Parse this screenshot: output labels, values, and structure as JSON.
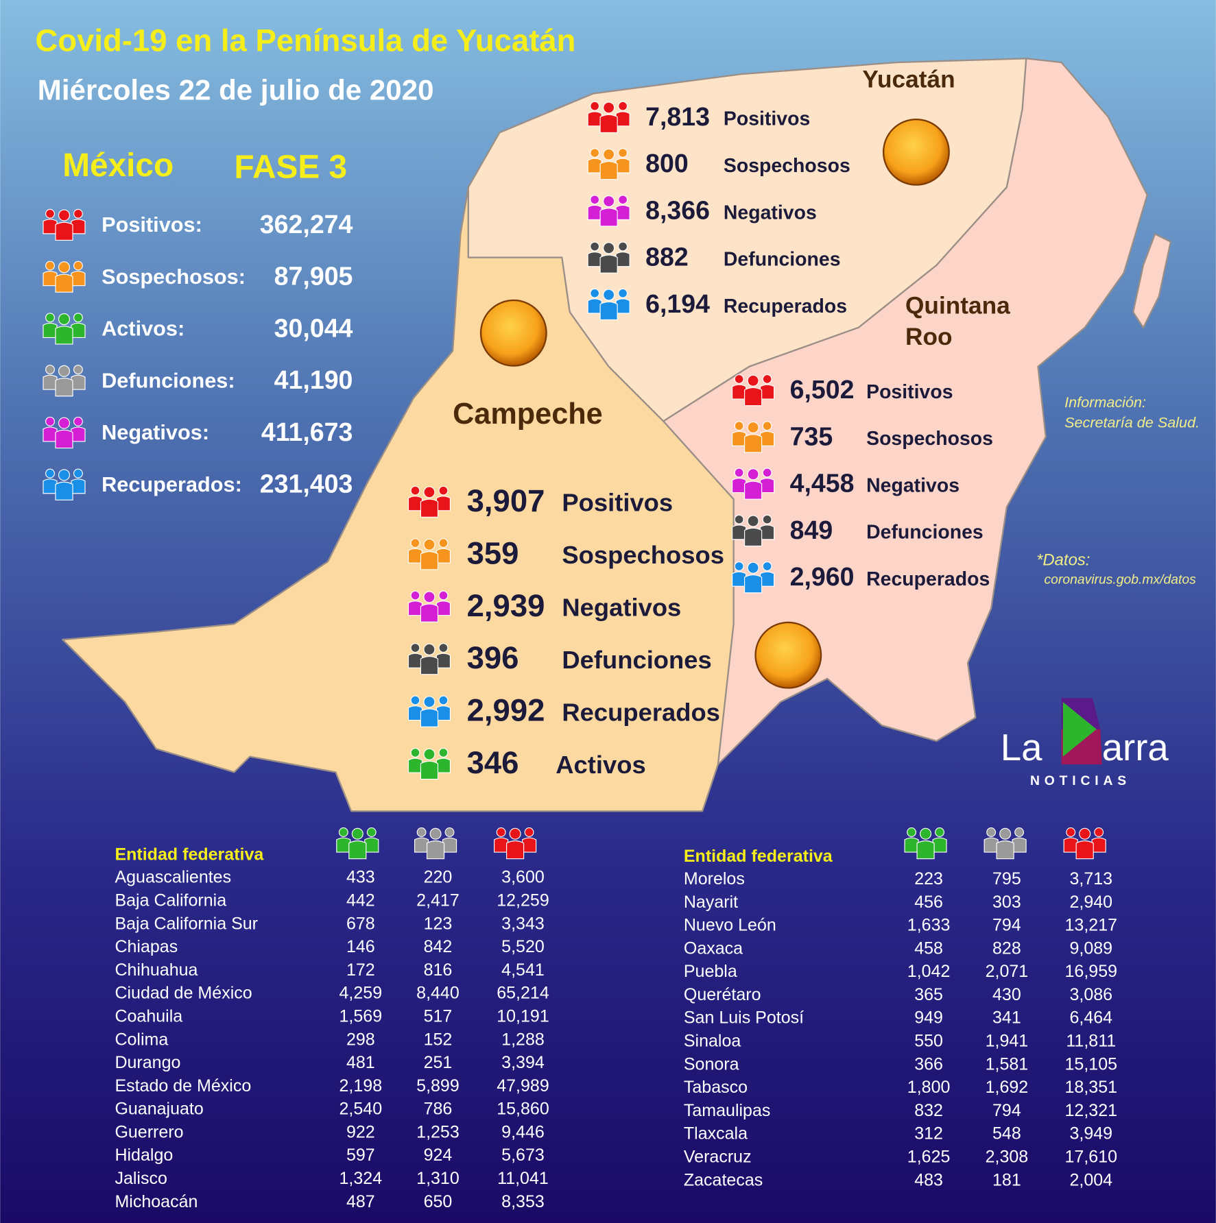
{
  "header": {
    "title": "Covid-19 en la Península de Yucatán",
    "date": "Miércoles 22 de julio de 2020"
  },
  "mexico": {
    "label": "México",
    "phase": "FASE 3",
    "stats": [
      {
        "label": "Positivos:",
        "value": "362,274"
      },
      {
        "label": "Sospechosos:",
        "value": "87,905"
      },
      {
        "label": "Activos:",
        "value": "30,044"
      },
      {
        "label": "Defunciones:",
        "value": "41,190"
      },
      {
        "label": "Negativos:",
        "value": "411,673"
      },
      {
        "label": "Recuperados:",
        "value": "231,403"
      }
    ]
  },
  "yucatan": {
    "name": "Yucatán",
    "stats": [
      {
        "value": "7,813",
        "label": "Positivos"
      },
      {
        "value": "800",
        "label": "Sospechosos"
      },
      {
        "value": "8,366",
        "label": "Negativos"
      },
      {
        "value": "882",
        "label": "Defunciones"
      },
      {
        "value": "6,194",
        "label": "Recuperados"
      }
    ]
  },
  "quintana_roo": {
    "name_lines": [
      "Quintana",
      "Roo"
    ],
    "stats": [
      {
        "value": "6,502",
        "label": "Positivos"
      },
      {
        "value": "735",
        "label": "Sospechosos"
      },
      {
        "value": "4,458",
        "label": "Negativos"
      },
      {
        "value": "849",
        "label": "Defunciones"
      },
      {
        "value": "2,960",
        "label": "Recuperados"
      }
    ]
  },
  "campeche": {
    "name": "Campeche",
    "stats": [
      {
        "value": "3,907",
        "label": "Positivos"
      },
      {
        "value": "359",
        "label": "Sospechosos"
      },
      {
        "value": "2,939",
        "label": "Negativos"
      },
      {
        "value": "396",
        "label": "Defunciones"
      },
      {
        "value": "2,992",
        "label": "Recuperados"
      },
      {
        "value": "346",
        "label": "Activos"
      }
    ]
  },
  "sources": {
    "info_label": "Información:",
    "info_source": "Secretaría de Salud.",
    "data_label": "*Datos:",
    "data_source": "coronavirus.gob.mx/datos"
  },
  "logo": {
    "left": "La",
    "right": "arra",
    "subtitle": "NOTICIAS"
  },
  "tables": [
    {
      "header": "Entidad federativa",
      "rows": [
        [
          "Aguascalientes",
          "433",
          "220",
          "3,600"
        ],
        [
          "Baja California",
          "442",
          "2,417",
          "12,259"
        ],
        [
          "Baja California Sur",
          "678",
          "123",
          "3,343"
        ],
        [
          "Chiapas",
          "146",
          "842",
          "5,520"
        ],
        [
          "Chihuahua",
          "172",
          "816",
          "4,541"
        ],
        [
          "Ciudad de México",
          "4,259",
          "8,440",
          "65,214"
        ],
        [
          "Coahuila",
          "1,569",
          "517",
          "10,191"
        ],
        [
          "Colima",
          "298",
          "152",
          "1,288"
        ],
        [
          "Durango",
          "481",
          "251",
          "3,394"
        ],
        [
          "Estado de México",
          "2,198",
          "5,899",
          "47,989"
        ],
        [
          "Guanajuato",
          "2,540",
          "786",
          "15,860"
        ],
        [
          "Guerrero",
          "922",
          "1,253",
          "9,446"
        ],
        [
          "Hidalgo",
          "597",
          "924",
          "5,673"
        ],
        [
          "Jalisco",
          "1,324",
          "1,310",
          "11,041"
        ],
        [
          "Michoacán",
          "487",
          "650",
          "8,353"
        ]
      ]
    },
    {
      "header": "Entidad federativa",
      "rows": [
        [
          "Morelos",
          "223",
          "795",
          "3,713"
        ],
        [
          "Nayarit",
          "456",
          "303",
          "2,940"
        ],
        [
          "Nuevo León",
          "1,633",
          "794",
          "13,217"
        ],
        [
          "Oaxaca",
          "458",
          "828",
          "9,089"
        ],
        [
          "Puebla",
          "1,042",
          "2,071",
          "16,959"
        ],
        [
          "Querétaro",
          "365",
          "430",
          "3,086"
        ],
        [
          "San Luis Potosí",
          "949",
          "341",
          "6,464"
        ],
        [
          "Sinaloa",
          "550",
          "1,941",
          "11,811"
        ],
        [
          "Sonora",
          "366",
          "1,581",
          "15,105"
        ],
        [
          "Tabasco",
          "1,800",
          "1,692",
          "18,351"
        ],
        [
          "Tamaulipas",
          "832",
          "794",
          "12,321"
        ],
        [
          "Tlaxcala",
          "312",
          "548",
          "3,949"
        ],
        [
          "Veracruz",
          "1,625",
          "2,308",
          "17,610"
        ],
        [
          "Zacatecas",
          "483",
          "181",
          "2,004"
        ]
      ]
    }
  ]
}
